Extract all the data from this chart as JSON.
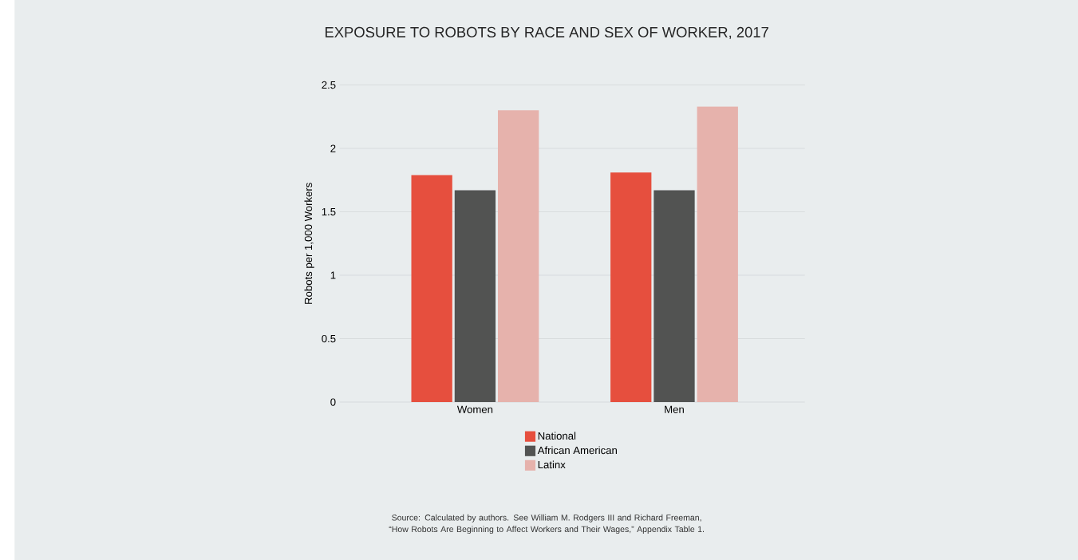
{
  "chart_data": {
    "type": "bar",
    "title": "EXPOSURE TO ROBOTS BY RACE AND SEX OF WORKER, 2017",
    "ylabel": "Robots per 1,000 Workers",
    "categories": [
      "Women",
      "Men"
    ],
    "series": [
      {
        "name": "National",
        "color": "#e64f3e",
        "values": [
          1.79,
          1.81
        ]
      },
      {
        "name": "African American",
        "color": "#525352",
        "values": [
          1.67,
          1.67
        ]
      },
      {
        "name": "Latinx",
        "color": "#e6b2ac",
        "values": [
          2.3,
          2.33
        ]
      }
    ],
    "ylim": [
      0,
      2.5
    ],
    "yticks": [
      0,
      0.5,
      1,
      1.5,
      2,
      2.5
    ],
    "grid": "y",
    "legend": "bottom",
    "annotations": [
      "Source:  Calculated by authors. See William M. Rodgers III and Richard Freeman, “How Robots Are Beginning to Affect Workers and Their Wages,” Appendix Table 1."
    ]
  }
}
